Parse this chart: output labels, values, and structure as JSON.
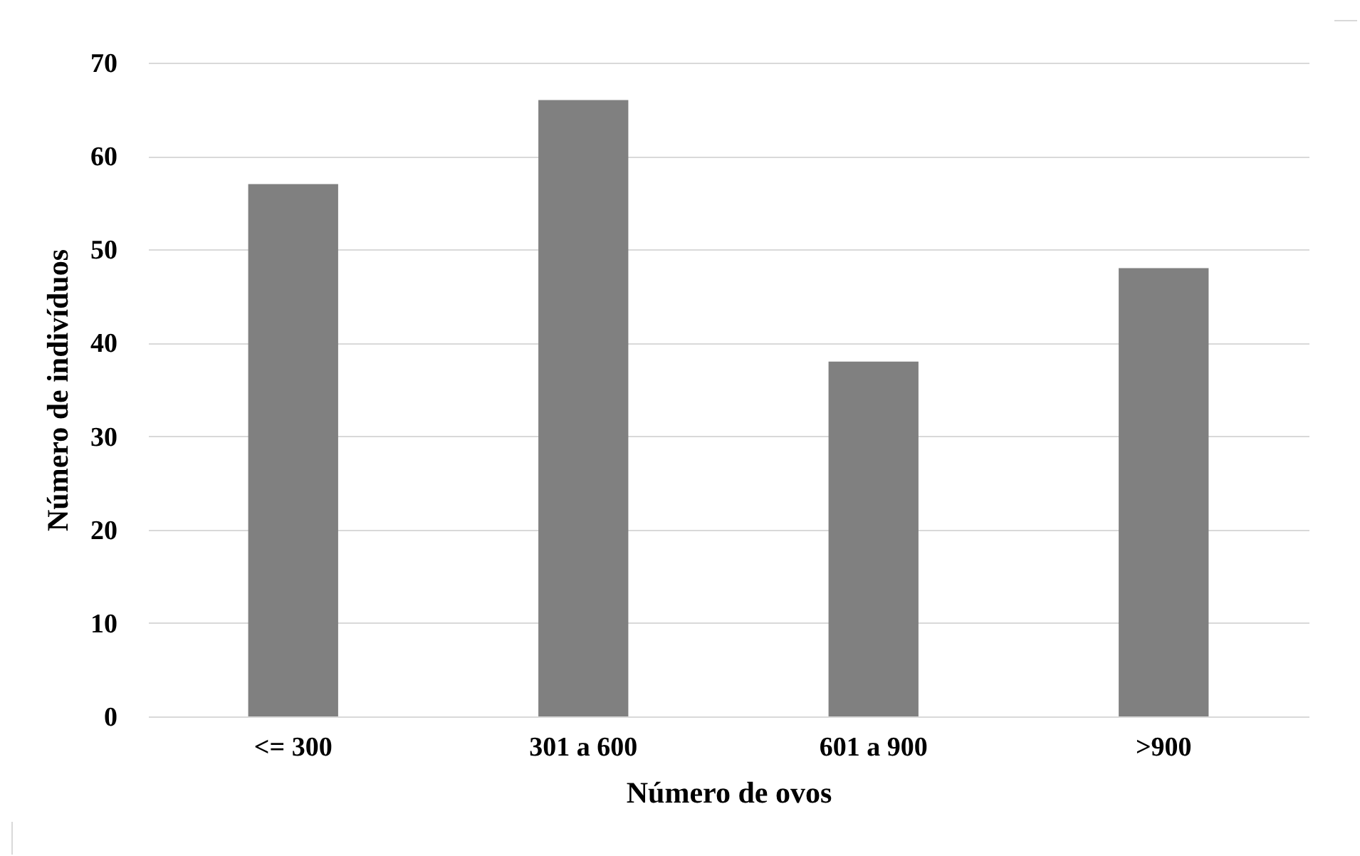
{
  "chart_data": {
    "type": "bar",
    "xlabel": "Número de ovos",
    "ylabel": "Número de indivíduos",
    "categories": [
      "<= 300",
      "301 a 600",
      "601 a 900",
      ">900"
    ],
    "values": [
      57,
      66,
      38,
      48
    ],
    "color": "#808080",
    "ylim": [
      0,
      70
    ],
    "yticks": [
      0,
      10,
      20,
      30,
      40,
      50,
      60,
      70
    ],
    "grid": "y"
  }
}
